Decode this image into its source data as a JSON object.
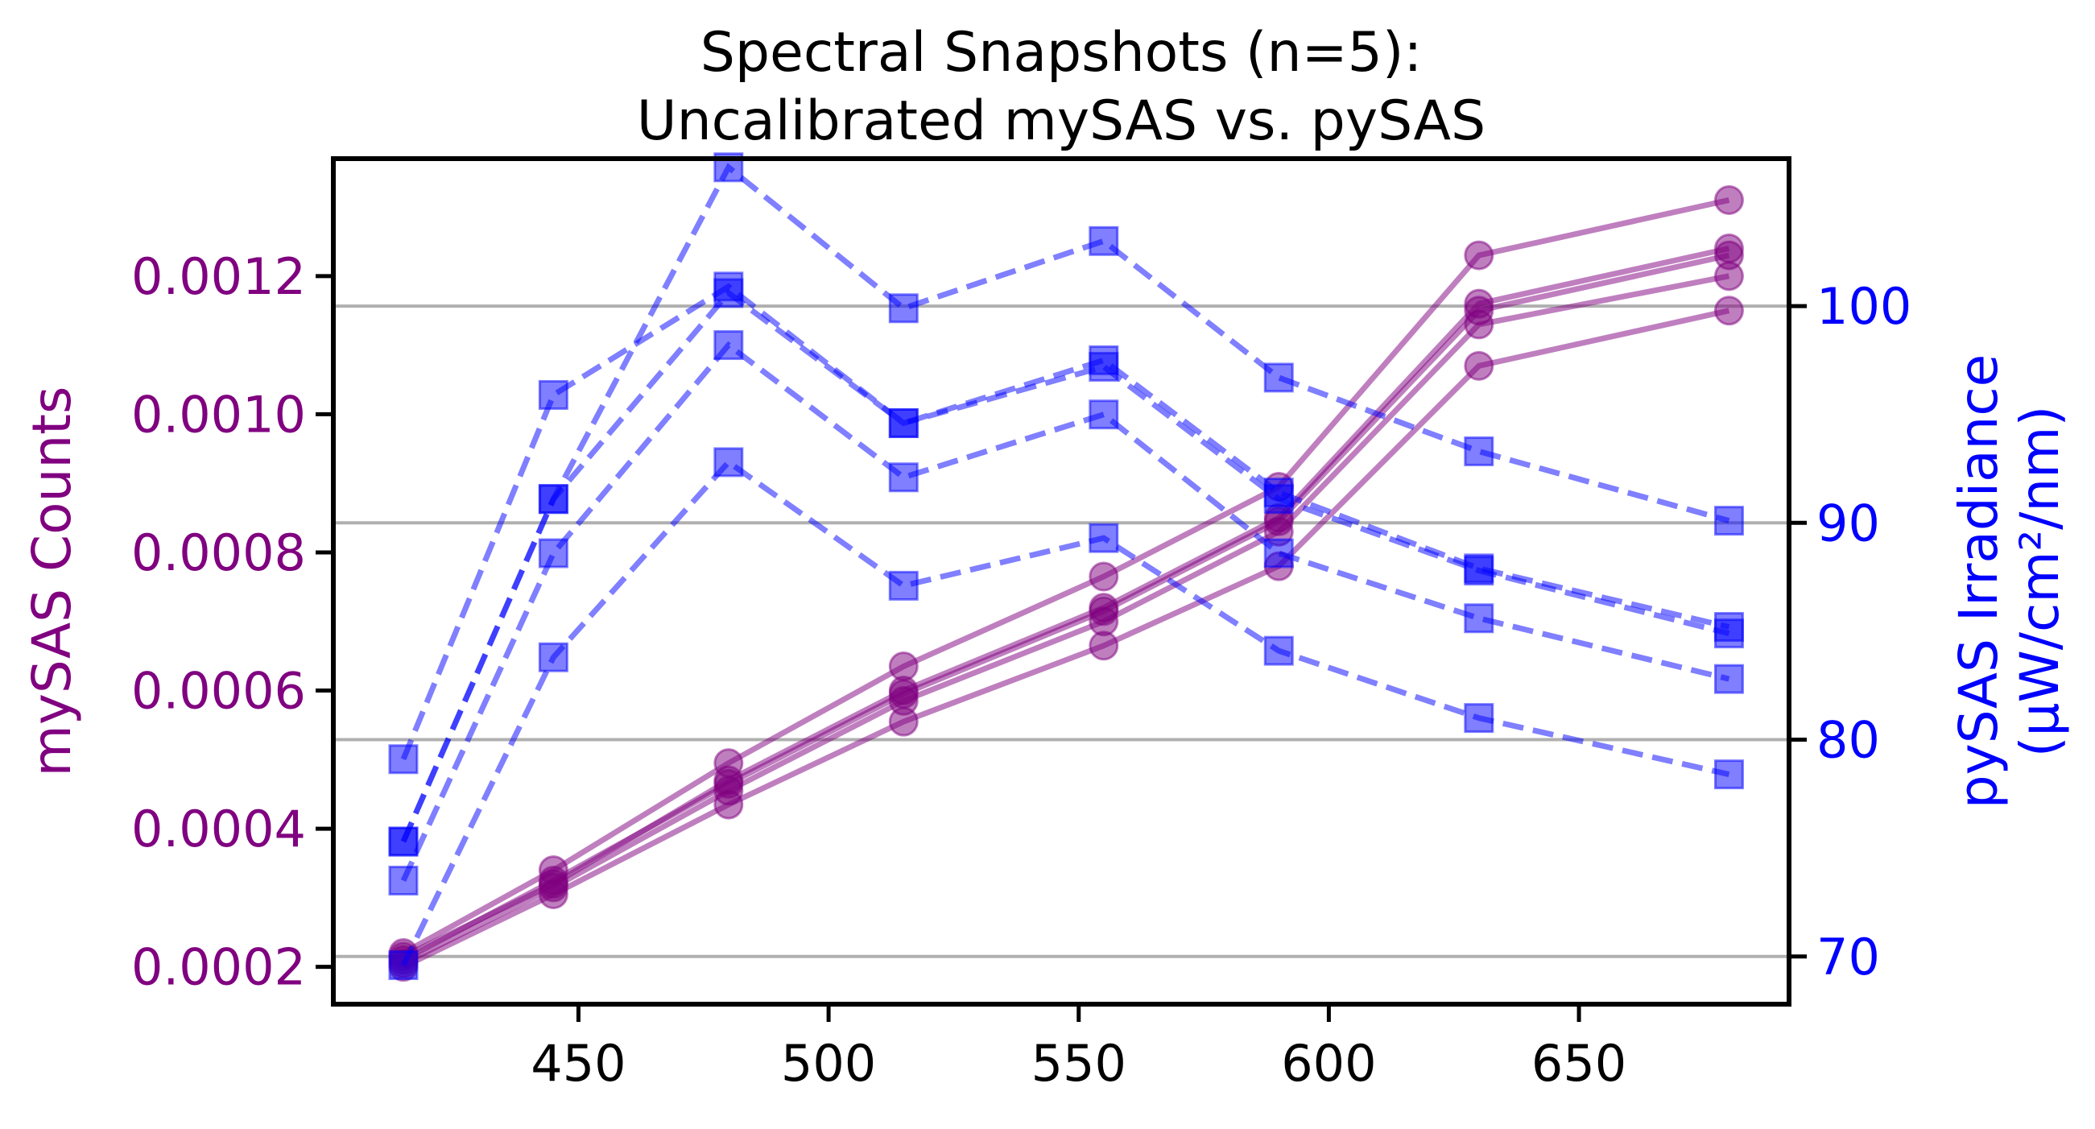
{
  "chart_data": {
    "type": "line",
    "title_lines": [
      "Spectral Snapshots (n=5):",
      "Uncalibrated mySAS vs. pySAS"
    ],
    "xlabel": "",
    "x": [
      415,
      445,
      480,
      515,
      555,
      590,
      630,
      680
    ],
    "xlim": [
      401,
      692
    ],
    "xticks": [
      450,
      500,
      550,
      600,
      650
    ],
    "left_axis": {
      "label": "mySAS Counts",
      "color": "#800080",
      "ylim": [
        0.000146,
        0.00137
      ],
      "ticks": [
        0.0002,
        0.0004,
        0.0006,
        0.0008,
        0.001,
        0.0012
      ],
      "tick_labels": [
        "0.0002",
        "0.0004",
        "0.0006",
        "0.0008",
        "0.0010",
        "0.0012"
      ]
    },
    "right_axis": {
      "label_lines": [
        "pySAS Irradiance",
        "(μW/cm²/nm)"
      ],
      "color": "#0000ff",
      "ylim": [
        67.8,
        106.8
      ],
      "ticks": [
        70,
        80,
        90,
        100
      ],
      "tick_labels": [
        "70",
        "80",
        "90",
        "100"
      ],
      "grid": true
    },
    "series": [
      {
        "axis": "left",
        "marker": "circle",
        "linestyle": "solid",
        "values": [
          0.00022,
          0.00034,
          0.000495,
          0.000635,
          0.000765,
          0.000895,
          0.00123,
          0.00131
        ]
      },
      {
        "axis": "left",
        "marker": "circle",
        "linestyle": "solid",
        "values": [
          0.000215,
          0.00032,
          0.00047,
          0.0006,
          0.00072,
          0.00085,
          0.00116,
          0.00124
        ]
      },
      {
        "axis": "left",
        "marker": "circle",
        "linestyle": "solid",
        "values": [
          0.00021,
          0.000325,
          0.000465,
          0.000595,
          0.000715,
          0.000845,
          0.00115,
          0.00123
        ]
      },
      {
        "axis": "left",
        "marker": "circle",
        "linestyle": "solid",
        "values": [
          0.000205,
          0.000315,
          0.000455,
          0.000585,
          0.0007,
          0.00083,
          0.00113,
          0.0012
        ]
      },
      {
        "axis": "left",
        "marker": "circle",
        "linestyle": "solid",
        "values": [
          0.0002,
          0.000305,
          0.000435,
          0.000555,
          0.000665,
          0.00078,
          0.00107,
          0.00115
        ]
      },
      {
        "axis": "right",
        "marker": "square",
        "linestyle": "dashed",
        "values": [
          75.3,
          91.1,
          106.4,
          99.9,
          103.0,
          96.7,
          93.3,
          90.1
        ]
      },
      {
        "axis": "right",
        "marker": "square",
        "linestyle": "dashed",
        "values": [
          79.1,
          95.9,
          100.9,
          94.6,
          97.5,
          91.4,
          87.9,
          85.2
        ]
      },
      {
        "axis": "right",
        "marker": "square",
        "linestyle": "dashed",
        "values": [
          75.3,
          91.1,
          100.6,
          94.6,
          97.2,
          91.1,
          87.8,
          84.9
        ]
      },
      {
        "axis": "right",
        "marker": "square",
        "linestyle": "dashed",
        "values": [
          73.5,
          88.6,
          98.2,
          92.1,
          95.0,
          88.6,
          85.6,
          82.8
        ]
      },
      {
        "axis": "right",
        "marker": "square",
        "linestyle": "dashed",
        "values": [
          69.6,
          83.8,
          92.8,
          87.1,
          89.3,
          84.1,
          81.0,
          78.4
        ]
      }
    ]
  }
}
